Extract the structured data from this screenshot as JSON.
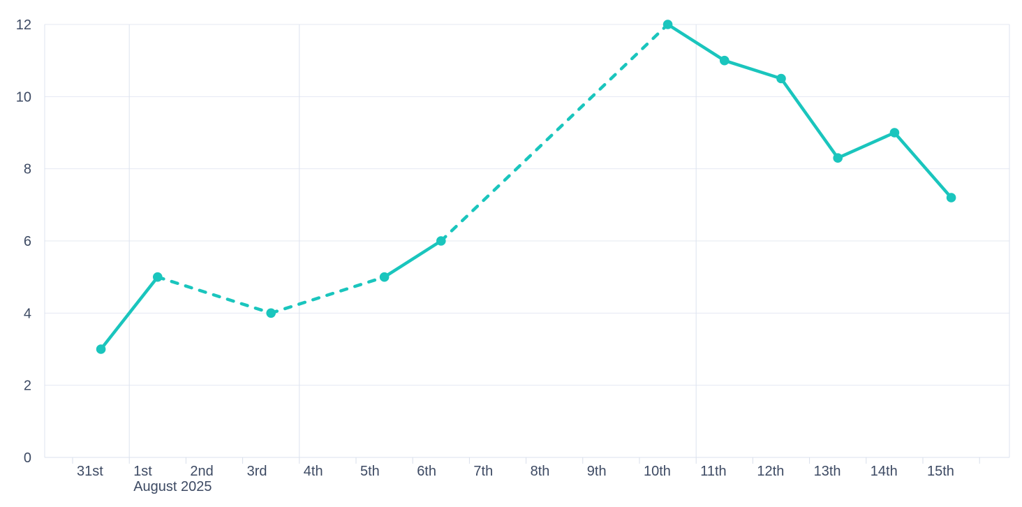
{
  "chart_data": {
    "type": "line",
    "title": "",
    "xlabel": "",
    "ylabel": "",
    "x_tick_labels": [
      "31st",
      "1st",
      "2nd",
      "3rd",
      "4th",
      "5th",
      "6th",
      "7th",
      "8th",
      "9th",
      "10th",
      "11th",
      "12th",
      "13th",
      "14th",
      "15th"
    ],
    "x_secondary_label": "August 2025",
    "x_secondary_label_under": "1st",
    "y_ticks": [
      0,
      2,
      4,
      6,
      8,
      10,
      12
    ],
    "ylim": [
      0,
      12
    ],
    "grid": {
      "horizontal": true,
      "vertical_gridline_day_indexes": [
        1,
        4,
        11
      ],
      "left_border": true,
      "right_border": true,
      "extra_trailing_x_tick": true
    },
    "series": [
      {
        "name": "daily-values",
        "color": "#1ac5bd",
        "marker": "circle",
        "points": [
          {
            "label": "31st",
            "day_index": 0,
            "value": 3
          },
          {
            "label": "1st",
            "day_index": 1,
            "value": 5
          },
          {
            "label": "3rd",
            "day_index": 3,
            "value": 4
          },
          {
            "label": "5th",
            "day_index": 5,
            "value": 5
          },
          {
            "label": "6th",
            "day_index": 6,
            "value": 6
          },
          {
            "label": "10th",
            "day_index": 10,
            "value": 12
          },
          {
            "label": "11th",
            "day_index": 11,
            "value": 11
          },
          {
            "label": "12th",
            "day_index": 12,
            "value": 10.5
          },
          {
            "label": "13th",
            "day_index": 13,
            "value": 8.3
          },
          {
            "label": "14th",
            "day_index": 14,
            "value": 9
          },
          {
            "label": "15th",
            "day_index": 15,
            "value": 7.2
          }
        ],
        "segments": [
          {
            "from_label": "31st",
            "to_label": "1st",
            "style": "solid"
          },
          {
            "from_label": "1st",
            "to_label": "3rd",
            "style": "dashed"
          },
          {
            "from_label": "3rd",
            "to_label": "5th",
            "style": "dashed"
          },
          {
            "from_label": "5th",
            "to_label": "6th",
            "style": "solid"
          },
          {
            "from_label": "6th",
            "to_label": "10th",
            "style": "dashed"
          },
          {
            "from_label": "10th",
            "to_label": "15th",
            "style": "solid"
          }
        ]
      }
    ],
    "colors": {
      "line": "#1ac5bd",
      "label_text": "#3d4a63",
      "gridline": "#e4e8f2",
      "plot_border": "#dde3ef",
      "axis_line": "#dbe1ee",
      "tick": "#d8dfeb",
      "background": "#ffffff"
    }
  }
}
